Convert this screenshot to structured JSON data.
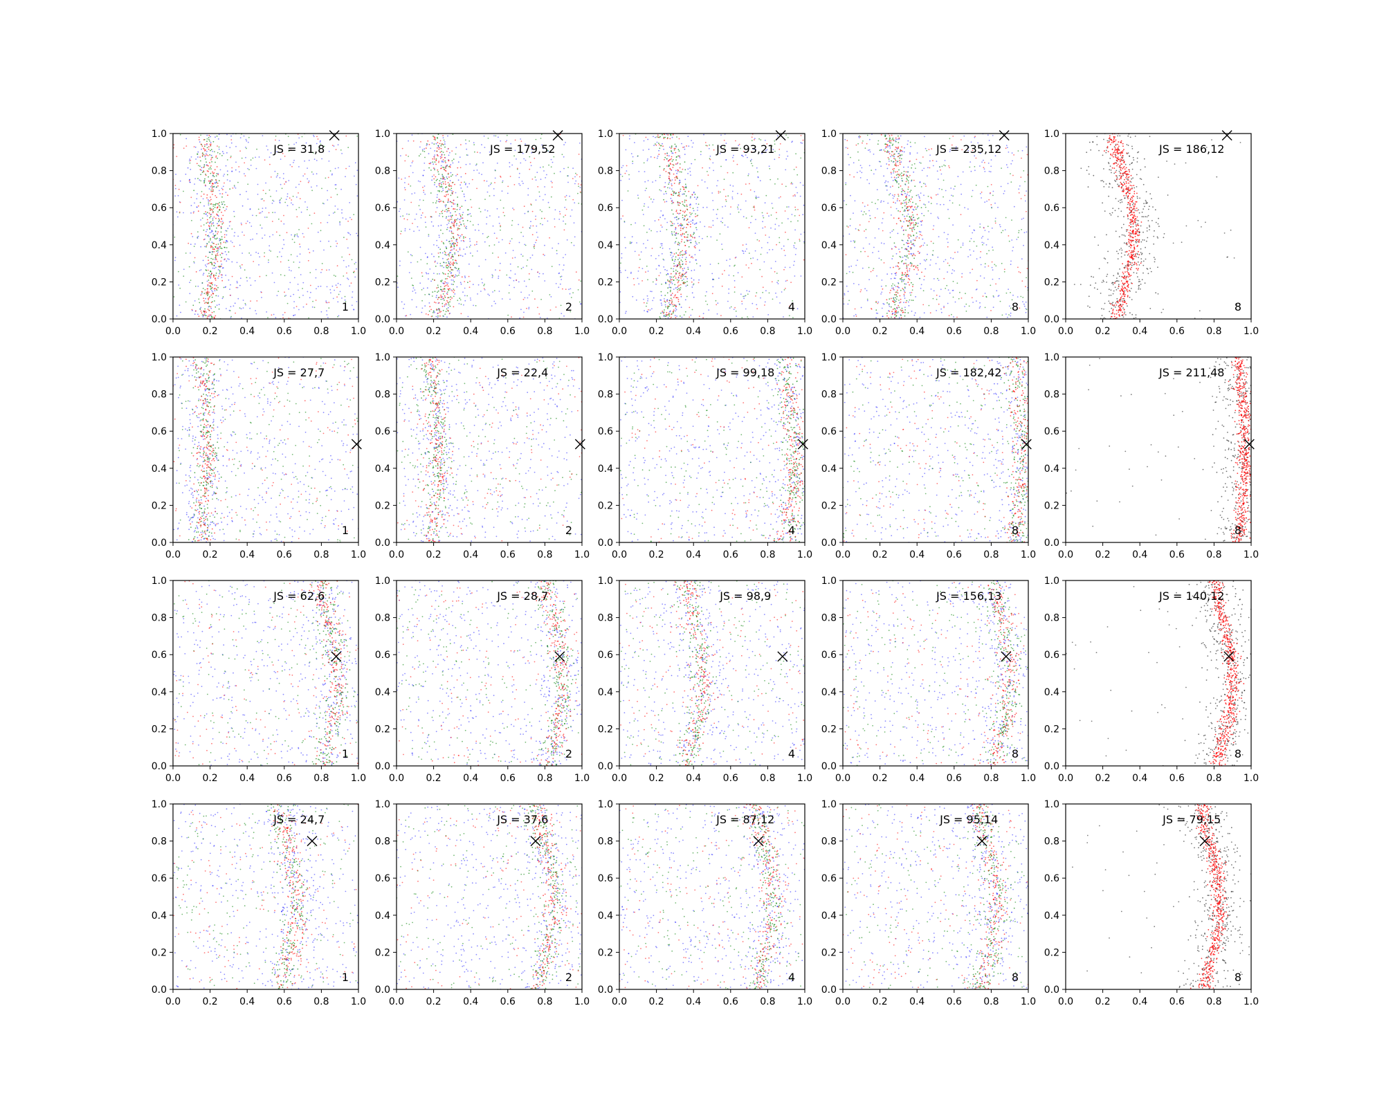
{
  "chart_data": {
    "type": "scatter",
    "grid": false,
    "rows": 4,
    "cols": 5,
    "xlim": [
      0,
      1
    ],
    "ylim": [
      0,
      1
    ],
    "ticks": [
      0.0,
      0.2,
      0.4,
      0.6,
      0.8,
      1.0
    ],
    "tick_labels": [
      "0.0",
      "0.2",
      "0.4",
      "0.6",
      "0.8",
      "1.0"
    ],
    "colors": {
      "blue": "#0000ff",
      "green": "#008000",
      "red": "#ff0000",
      "black": "#000000"
    },
    "panels": [
      {
        "row": 0,
        "col": 0,
        "annotation": "JS = 31,8",
        "corner_label": "1",
        "marker": [
          0.87,
          0.99
        ],
        "mode": "mixed",
        "curve": {
          "base": 0.2,
          "amp": 0.03
        }
      },
      {
        "row": 0,
        "col": 1,
        "annotation": "JS = 179,52",
        "corner_label": "2",
        "marker": [
          0.87,
          0.99
        ],
        "mode": "mixed",
        "curve": {
          "base": 0.26,
          "amp": 0.05
        }
      },
      {
        "row": 0,
        "col": 2,
        "annotation": "JS = 93,21",
        "corner_label": "4",
        "marker": [
          0.87,
          0.99
        ],
        "mode": "mixed",
        "curve": {
          "base": 0.3,
          "amp": 0.05
        }
      },
      {
        "row": 0,
        "col": 3,
        "annotation": "JS = 235,12",
        "corner_label": "8",
        "marker": [
          0.87,
          0.99
        ],
        "mode": "mixed",
        "curve": {
          "base": 0.31,
          "amp": 0.06
        }
      },
      {
        "row": 0,
        "col": 4,
        "annotation": "JS = 186,12",
        "corner_label": "8",
        "marker": [
          0.87,
          0.99
        ],
        "mode": "final",
        "curve": {
          "base": 0.31,
          "amp": 0.06
        }
      },
      {
        "row": 1,
        "col": 0,
        "annotation": "JS = 27,7",
        "corner_label": "1",
        "marker": [
          0.99,
          0.53
        ],
        "mode": "mixed",
        "curve": {
          "base": 0.17,
          "amp": 0.02
        }
      },
      {
        "row": 1,
        "col": 1,
        "annotation": "JS = 22,4",
        "corner_label": "2",
        "marker": [
          0.99,
          0.53
        ],
        "mode": "mixed",
        "curve": {
          "base": 0.2,
          "amp": 0.03
        }
      },
      {
        "row": 1,
        "col": 2,
        "annotation": "JS = 99,18",
        "corner_label": "4",
        "marker": [
          0.99,
          0.53
        ],
        "mode": "mixed",
        "curve": {
          "base": 0.92,
          "amp": 0.03
        }
      },
      {
        "row": 1,
        "col": 3,
        "annotation": "JS = 182,42",
        "corner_label": "8",
        "marker": [
          0.99,
          0.53
        ],
        "mode": "mixed",
        "curve": {
          "base": 0.95,
          "amp": 0.02
        }
      },
      {
        "row": 1,
        "col": 4,
        "annotation": "JS = 211,48",
        "corner_label": "8",
        "marker": [
          0.99,
          0.53
        ],
        "mode": "final",
        "curve": {
          "base": 0.95,
          "amp": 0.02
        }
      },
      {
        "row": 2,
        "col": 0,
        "annotation": "JS = 62,6",
        "corner_label": "1",
        "marker": [
          0.88,
          0.59
        ],
        "mode": "mixed",
        "curve": {
          "base": 0.84,
          "amp": 0.05
        }
      },
      {
        "row": 2,
        "col": 1,
        "annotation": "JS = 28,7",
        "corner_label": "2",
        "marker": [
          0.88,
          0.59
        ],
        "mode": "mixed",
        "curve": {
          "base": 0.85,
          "amp": 0.05
        }
      },
      {
        "row": 2,
        "col": 2,
        "annotation": "JS = 98,9",
        "corner_label": "4",
        "marker": [
          0.88,
          0.59
        ],
        "mode": "mixed",
        "curve": {
          "base": 0.4,
          "amp": 0.05
        }
      },
      {
        "row": 2,
        "col": 3,
        "annotation": "JS = 156,13",
        "corner_label": "8",
        "marker": [
          0.88,
          0.59
        ],
        "mode": "mixed",
        "curve": {
          "base": 0.85,
          "amp": 0.05
        }
      },
      {
        "row": 2,
        "col": 4,
        "annotation": "JS = 140,12",
        "corner_label": "8",
        "marker": [
          0.88,
          0.59
        ],
        "mode": "final",
        "curve": {
          "base": 0.85,
          "amp": 0.05
        }
      },
      {
        "row": 3,
        "col": 0,
        "annotation": "JS = 24,7",
        "corner_label": "1",
        "marker": [
          0.75,
          0.8
        ],
        "mode": "mixed",
        "curve": {
          "base": 0.62,
          "amp": 0.05
        }
      },
      {
        "row": 3,
        "col": 1,
        "annotation": "JS = 37,6",
        "corner_label": "2",
        "marker": [
          0.75,
          0.8
        ],
        "mode": "mixed",
        "curve": {
          "base": 0.8,
          "amp": 0.05
        }
      },
      {
        "row": 3,
        "col": 2,
        "annotation": "JS = 87,12",
        "corner_label": "4",
        "marker": [
          0.75,
          0.8
        ],
        "mode": "mixed",
        "curve": {
          "base": 0.78,
          "amp": 0.05
        }
      },
      {
        "row": 3,
        "col": 3,
        "annotation": "JS = 95,14",
        "corner_label": "8",
        "marker": [
          0.75,
          0.8
        ],
        "mode": "mixed",
        "curve": {
          "base": 0.78,
          "amp": 0.05
        }
      },
      {
        "row": 3,
        "col": 4,
        "annotation": "JS = 79,15",
        "corner_label": "8",
        "marker": [
          0.75,
          0.8
        ],
        "mode": "final",
        "curve": {
          "base": 0.78,
          "amp": 0.05
        }
      }
    ]
  }
}
